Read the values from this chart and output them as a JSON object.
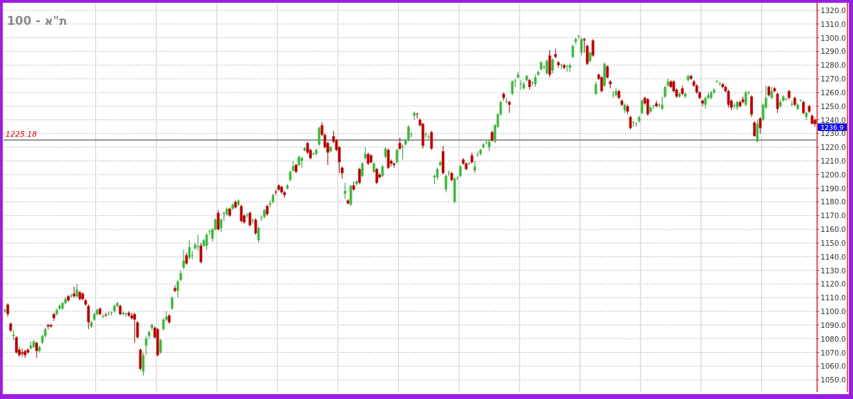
{
  "chart_data": {
    "type": "candlestick",
    "title": "ת\"א - 100",
    "categories": [
      null,
      null,
      null,
      null,
      null,
      null,
      null,
      null,
      null,
      null,
      null,
      null,
      null,
      null,
      null,
      null,
      null,
      null,
      null,
      null,
      null,
      null,
      null,
      null,
      null,
      null,
      null,
      null,
      null,
      null,
      null,
      null,
      null,
      null,
      null,
      null,
      null,
      null,
      null,
      null,
      null,
      null,
      null,
      null,
      null,
      null,
      null,
      null,
      null,
      null,
      null,
      null,
      null,
      null,
      null,
      null,
      null,
      null,
      null,
      null,
      null,
      null,
      null,
      null,
      null,
      null,
      null,
      null,
      null,
      null,
      null,
      null,
      null,
      null,
      null,
      null,
      null,
      null,
      null,
      null,
      null,
      null,
      null,
      null,
      null,
      null,
      null,
      null,
      null,
      null,
      null,
      null,
      null,
      null,
      null,
      null,
      null,
      null,
      null,
      null,
      null,
      null,
      null,
      null,
      null,
      null,
      null,
      null,
      null,
      null,
      null,
      null,
      null,
      null,
      null,
      null,
      null,
      null,
      null,
      null,
      null,
      null,
      null,
      null,
      null,
      null,
      null,
      null,
      null,
      null,
      null,
      null,
      null,
      null,
      null,
      null,
      null,
      null,
      null,
      null,
      null,
      null,
      null,
      null,
      null,
      null,
      null,
      null,
      null,
      null,
      null,
      null,
      null,
      null,
      null,
      null,
      null,
      null,
      null,
      null,
      null,
      null,
      null,
      null,
      null,
      null,
      null,
      null,
      null,
      null,
      null,
      null,
      null,
      null,
      null,
      null,
      null,
      null,
      null,
      null,
      null,
      null,
      null,
      null,
      null,
      null,
      null,
      null,
      null,
      null,
      null,
      null,
      null,
      null,
      null,
      null,
      null,
      null,
      null,
      null,
      null,
      null,
      null,
      null,
      null,
      null,
      null,
      null,
      null,
      null,
      null,
      null,
      null,
      null,
      null,
      null,
      null,
      null,
      null,
      null,
      null,
      null,
      null,
      null,
      null,
      null,
      null,
      null,
      null,
      null,
      null,
      null,
      null,
      null,
      null,
      null,
      null,
      null,
      null,
      null,
      null,
      null,
      null,
      null,
      null,
      null,
      null,
      null,
      null,
      null,
      null,
      null,
      null,
      null,
      null,
      null,
      null,
      null,
      null,
      null,
      null,
      null,
      null,
      null,
      null,
      null,
      null,
      null,
      null,
      null,
      null,
      null,
      null,
      null,
      null,
      null,
      null,
      null,
      null,
      null,
      null,
      null
    ],
    "ohlc": [
      [
        1100,
        1102,
        1099,
        1101
      ],
      [
        1105,
        1106,
        1096,
        1098
      ],
      [
        1091,
        1092,
        1085,
        1086
      ],
      [
        1082,
        1086,
        1079,
        1083
      ],
      [
        1081,
        1082,
        1069,
        1070
      ],
      [
        1072,
        1074,
        1067,
        1068
      ],
      [
        1070,
        1073,
        1067,
        1069
      ],
      [
        1071,
        1072,
        1066,
        1068
      ],
      [
        1072,
        1073,
        1069,
        1070
      ],
      [
        1073,
        1078,
        1072,
        1075
      ],
      [
        1074,
        1079,
        1073,
        1078
      ],
      [
        1077,
        1078,
        1066,
        1071
      ],
      [
        1071,
        1075,
        1070,
        1074
      ],
      [
        1077,
        1083,
        1076,
        1082
      ],
      [
        1082,
        1088,
        1081,
        1087
      ],
      [
        1090,
        1091,
        1087,
        1089
      ],
      [
        1090,
        1091,
        1088,
        1089
      ],
      [
        1098,
        1099,
        1093,
        1095
      ],
      [
        1098,
        1102,
        1097,
        1101
      ],
      [
        1102,
        1105,
        1101,
        1104
      ],
      [
        1102,
        1107,
        1101,
        1106
      ],
      [
        1106,
        1110,
        1105,
        1109
      ],
      [
        1111,
        1112,
        1107,
        1108
      ],
      [
        1111,
        1113,
        1110,
        1111.5
      ],
      [
        1113,
        1118,
        1110,
        1111
      ],
      [
        1111,
        1120,
        1110,
        1116
      ],
      [
        1114,
        1115,
        1108,
        1109
      ],
      [
        1113,
        1114,
        1108,
        1109
      ],
      [
        1108,
        1109,
        1104,
        1105
      ],
      [
        1104,
        1105,
        1087,
        1092
      ],
      [
        1089,
        1093,
        1088,
        1092
      ],
      [
        1094,
        1099,
        1093,
        1098
      ],
      [
        1098,
        1102,
        1097,
        1101
      ],
      [
        1102,
        1103,
        1097,
        1098
      ],
      [
        1096,
        1098,
        1095,
        1096.5
      ],
      [
        1097.5,
        1099,
        1096,
        1097
      ],
      [
        1098,
        1100,
        1097,
        1098.5
      ],
      [
        1099,
        1100,
        1097,
        1099.5
      ],
      [
        1100,
        1105,
        1099,
        1104
      ],
      [
        1104,
        1107,
        1103,
        1106
      ],
      [
        1104,
        1105,
        1097,
        1098
      ],
      [
        1098,
        1100,
        1097,
        1099
      ],
      [
        1098,
        1099,
        1096,
        1098.5
      ],
      [
        1099,
        1100,
        1096,
        1097
      ],
      [
        1097,
        1099,
        1094,
        1095
      ],
      [
        1098,
        1099,
        1077,
        1094
      ],
      [
        1092,
        1093,
        1080,
        1081
      ],
      [
        1072,
        1073,
        1057,
        1058
      ],
      [
        1056,
        1070,
        1053,
        1068
      ],
      [
        1075,
        1082,
        1068,
        1080
      ],
      [
        1082,
        1086,
        1080,
        1085
      ],
      [
        1088,
        1091,
        1086,
        1090
      ],
      [
        1088,
        1089,
        1080,
        1081
      ],
      [
        1087,
        1088,
        1067,
        1068
      ],
      [
        1070,
        1080,
        1069,
        1079
      ],
      [
        1087,
        1095,
        1086,
        1094
      ],
      [
        1094,
        1100,
        1093,
        1096
      ],
      [
        1097,
        1098,
        1091,
        1092
      ],
      [
        1102,
        1111,
        1101,
        1110
      ],
      [
        1117,
        1119,
        1114,
        1115
      ],
      [
        1115,
        1123,
        1110,
        1122
      ],
      [
        1123,
        1130,
        1122,
        1128
      ],
      [
        1132,
        1145,
        1131,
        1137
      ],
      [
        1141,
        1143,
        1134,
        1135
      ],
      [
        1139,
        1152,
        1138,
        1147
      ],
      [
        1141,
        1144,
        1138,
        1141.5
      ],
      [
        1146,
        1150,
        1145,
        1149
      ],
      [
        1147,
        1156,
        1144,
        1147.5
      ],
      [
        1148,
        1150,
        1135,
        1136
      ],
      [
        1148,
        1153,
        1147,
        1152
      ],
      [
        1148,
        1157,
        1145,
        1156
      ],
      [
        1158,
        1160,
        1156,
        1158.5
      ],
      [
        1153,
        1161,
        1151,
        1160
      ],
      [
        1160,
        1168,
        1159,
        1167
      ],
      [
        1172,
        1174,
        1159,
        1160
      ],
      [
        1161,
        1168,
        1158,
        1167
      ],
      [
        1171,
        1173,
        1166,
        1172
      ],
      [
        1171,
        1176,
        1170,
        1175
      ],
      [
        1175,
        1176,
        1169,
        1170
      ],
      [
        1175,
        1179,
        1174,
        1178
      ],
      [
        1180,
        1181,
        1175,
        1176
      ],
      [
        1178,
        1182,
        1177,
        1181
      ],
      [
        1177,
        1178,
        1165,
        1166
      ],
      [
        1170,
        1171,
        1164,
        1165
      ],
      [
        1170,
        1172,
        1168,
        1170.5
      ],
      [
        1172,
        1173,
        1162,
        1163
      ],
      [
        1166,
        1168,
        1164,
        1166.5
      ],
      [
        1167,
        1168,
        1156,
        1157
      ],
      [
        1152,
        1162,
        1150,
        1161
      ],
      [
        1168,
        1170,
        1166,
        1168.5
      ],
      [
        1169,
        1175,
        1168,
        1174
      ],
      [
        1177,
        1178,
        1170,
        1171
      ],
      [
        1178,
        1181,
        1176,
        1179
      ],
      [
        1180,
        1186,
        1179,
        1185
      ],
      [
        1187.5,
        1189,
        1185,
        1187
      ],
      [
        1192,
        1193,
        1188,
        1189
      ],
      [
        1191,
        1192,
        1186,
        1187
      ],
      [
        1187,
        1188,
        1183,
        1185
      ],
      [
        1190,
        1193,
        1189,
        1192
      ],
      [
        1196,
        1203,
        1195,
        1202
      ],
      [
        1203,
        1210,
        1202,
        1206
      ],
      [
        1207,
        1208,
        1201,
        1202
      ],
      [
        1207,
        1214,
        1206,
        1213
      ],
      [
        1210,
        1213,
        1205,
        1212
      ],
      [
        1217.5,
        1220,
        1217,
        1219.5
      ],
      [
        1223,
        1224,
        1215,
        1216
      ],
      [
        1218,
        1219,
        1211,
        1212
      ],
      [
        1215,
        1216,
        1214,
        1215.5
      ],
      [
        1215,
        1219,
        1214,
        1218
      ],
      [
        1222,
        1235,
        1221,
        1234
      ],
      [
        1236,
        1238,
        1228,
        1229
      ],
      [
        1229,
        1230,
        1219,
        1220
      ],
      [
        1223,
        1224,
        1207,
        1216
      ],
      [
        1217,
        1221,
        1216,
        1220
      ],
      [
        1228,
        1232,
        1223,
        1224
      ],
      [
        1225,
        1226,
        1217,
        1218
      ],
      [
        1220,
        1221,
        1201,
        1209
      ],
      [
        1205,
        1206,
        1197,
        1201
      ],
      [
        1186,
        1194,
        1182,
        1188
      ],
      [
        1181,
        1182,
        1178,
        1179
      ],
      [
        1178,
        1192,
        1177,
        1192
      ],
      [
        1192,
        1195,
        1188,
        1189
      ],
      [
        1193,
        1196,
        1192,
        1195
      ],
      [
        1204,
        1205,
        1193,
        1194
      ],
      [
        1199,
        1209,
        1198,
        1208
      ],
      [
        1212,
        1220,
        1211,
        1215
      ],
      [
        1215,
        1216,
        1207,
        1208
      ],
      [
        1214,
        1215,
        1208,
        1209
      ],
      [
        1202,
        1209,
        1201,
        1208
      ],
      [
        1204,
        1205,
        1193,
        1194
      ],
      [
        1200,
        1201,
        1197,
        1198
      ],
      [
        1199,
        1207,
        1198,
        1206
      ],
      [
        1213,
        1220,
        1212,
        1219
      ],
      [
        1218,
        1219,
        1204,
        1205
      ],
      [
        1210,
        1211,
        1206,
        1208
      ],
      [
        1208,
        1209,
        1205,
        1207
      ],
      [
        1209,
        1219,
        1208,
        1218
      ],
      [
        1223,
        1227,
        1218,
        1219
      ],
      [
        1220,
        1222,
        1211,
        1220.5
      ],
      [
        1222,
        1226,
        1221,
        1225
      ],
      [
        1225,
        1236,
        1224,
        1235
      ],
      [
        1229,
        1231,
        1227,
        1229.5
      ],
      [
        1243,
        1246,
        1240,
        1245
      ],
      [
        1244.5,
        1245,
        1241,
        1244
      ],
      [
        1240,
        1241,
        1235,
        1236
      ],
      [
        1237,
        1238,
        1219,
        1221
      ],
      [
        1229,
        1231,
        1227,
        1229.5
      ],
      [
        1227,
        1229,
        1226,
        1227.5
      ],
      [
        1231,
        1232,
        1218,
        1219
      ],
      [
        1198,
        1200,
        1193,
        1199
      ],
      [
        1198,
        1205,
        1196,
        1204
      ],
      [
        1207,
        1210,
        1206,
        1209
      ],
      [
        1217,
        1221,
        1200,
        1201
      ],
      [
        1189,
        1200,
        1187,
        1199
      ],
      [
        1201,
        1203,
        1199,
        1201.5
      ],
      [
        1201,
        1202,
        1195,
        1196
      ],
      [
        1180,
        1198,
        1179,
        1197
      ],
      [
        1197,
        1199,
        1196,
        1197.5
      ],
      [
        1199,
        1207,
        1198,
        1206
      ],
      [
        1211,
        1212,
        1207,
        1208
      ],
      [
        1208,
        1209,
        1203,
        1204
      ],
      [
        1208,
        1209,
        1207,
        1208.5
      ],
      [
        1214,
        1216,
        1208,
        1209
      ],
      [
        1203,
        1210,
        1201,
        1206
      ],
      [
        1214,
        1217,
        1213,
        1214.5
      ],
      [
        1215,
        1219,
        1214,
        1218
      ],
      [
        1220,
        1223,
        1219,
        1222
      ],
      [
        1223,
        1225,
        1222,
        1223.5
      ],
      [
        1220,
        1226,
        1217,
        1224
      ],
      [
        1231,
        1232,
        1224,
        1225
      ],
      [
        1224,
        1237,
        1223,
        1236
      ],
      [
        1235,
        1245,
        1234,
        1244
      ],
      [
        1244,
        1254,
        1243,
        1253
      ],
      [
        1259,
        1260,
        1254,
        1256
      ],
      [
        1253,
        1256,
        1252,
        1253.5
      ],
      [
        1253,
        1254,
        1245,
        1251
      ],
      [
        1259,
        1269,
        1258,
        1268
      ],
      [
        1268,
        1270,
        1264,
        1268.5
      ],
      [
        1271,
        1275,
        1270,
        1273
      ],
      [
        1266,
        1269,
        1262,
        1266.5
      ],
      [
        1263,
        1268,
        1262,
        1266
      ],
      [
        1269,
        1273,
        1268,
        1272
      ],
      [
        1269,
        1270,
        1262,
        1264
      ],
      [
        1267,
        1268,
        1265,
        1267.5
      ],
      [
        1266,
        1273,
        1264,
        1271
      ],
      [
        1273,
        1276,
        1272,
        1275
      ],
      [
        1277,
        1283,
        1276,
        1282
      ],
      [
        1278,
        1280,
        1277,
        1278.5
      ],
      [
        1274,
        1284,
        1273,
        1283
      ],
      [
        1287,
        1291,
        1271,
        1273
      ],
      [
        1276,
        1285,
        1274,
        1284
      ],
      [
        1288,
        1292,
        1285,
        1286
      ],
      [
        1282,
        1283,
        1278,
        1280
      ],
      [
        1280,
        1281,
        1277,
        1280.5
      ],
      [
        1280,
        1281,
        1277,
        1278
      ],
      [
        1279,
        1280,
        1275,
        1279.5
      ],
      [
        1278,
        1281,
        1275,
        1280
      ],
      [
        1286,
        1295,
        1285,
        1294
      ],
      [
        1297,
        1300,
        1295,
        1299
      ],
      [
        1301,
        1302,
        1299,
        1301.5
      ],
      [
        1289,
        1300,
        1287,
        1299
      ],
      [
        1299,
        1300,
        1289,
        1298
      ],
      [
        1294,
        1295,
        1280,
        1281
      ],
      [
        1283,
        1290,
        1282,
        1289
      ],
      [
        1298,
        1299,
        1286,
        1287
      ],
      [
        1259,
        1268,
        1258,
        1266
      ],
      [
        1273,
        1274,
        1269,
        1270
      ],
      [
        1271,
        1272,
        1260,
        1261
      ],
      [
        1265,
        1282,
        1264,
        1281
      ],
      [
        1279,
        1280,
        1270,
        1271
      ],
      [
        1268,
        1269,
        1263,
        1266
      ],
      [
        1258,
        1261,
        1256,
        1258.5
      ],
      [
        1258,
        1263,
        1257,
        1261
      ],
      [
        1261,
        1262,
        1255,
        1256
      ],
      [
        1254,
        1255,
        1250,
        1251
      ],
      [
        1247,
        1252,
        1245,
        1251
      ],
      [
        1250,
        1251,
        1244,
        1246
      ],
      [
        1242,
        1243,
        1233,
        1234
      ],
      [
        1238,
        1239,
        1235,
        1238.5
      ],
      [
        1237,
        1238,
        1235,
        1237.5
      ],
      [
        1239,
        1243,
        1238,
        1242
      ],
      [
        1245,
        1255,
        1244,
        1254
      ],
      [
        1256,
        1257,
        1251,
        1252
      ],
      [
        1255,
        1256,
        1243,
        1244
      ],
      [
        1246,
        1250,
        1245,
        1249
      ],
      [
        1250,
        1251,
        1248,
        1250.5
      ],
      [
        1252,
        1254,
        1249,
        1250
      ],
      [
        1251,
        1252,
        1249,
        1251.5
      ],
      [
        1248,
        1257,
        1247,
        1251
      ],
      [
        1257,
        1265,
        1256,
        1264
      ],
      [
        1265,
        1270,
        1264,
        1268
      ],
      [
        1268,
        1269,
        1263,
        1264
      ],
      [
        1268,
        1269,
        1260,
        1261
      ],
      [
        1262,
        1263,
        1256,
        1257
      ],
      [
        1257,
        1260,
        1256,
        1259
      ],
      [
        1263,
        1265,
        1258,
        1259
      ],
      [
        1257,
        1260,
        1256,
        1259
      ],
      [
        1269,
        1273,
        1268,
        1272
      ],
      [
        1272,
        1273,
        1269,
        1270
      ],
      [
        1268,
        1269,
        1264,
        1265
      ],
      [
        1265,
        1266,
        1259,
        1260
      ],
      [
        1260,
        1261,
        1255,
        1256
      ],
      [
        1254,
        1255,
        1250,
        1252
      ],
      [
        1251,
        1257,
        1248,
        1256
      ],
      [
        1256,
        1260,
        1255,
        1258
      ],
      [
        1256,
        1261,
        1255,
        1260
      ],
      [
        1260,
        1263,
        1259,
        1262
      ],
      [
        1268,
        1269,
        1267,
        1268.5
      ],
      [
        1266,
        1268,
        1265,
        1266.5
      ],
      [
        1266,
        1267,
        1263,
        1264
      ],
      [
        1264,
        1265,
        1260,
        1261
      ],
      [
        1261,
        1262,
        1249,
        1251
      ],
      [
        1254,
        1255,
        1247,
        1249
      ],
      [
        1250,
        1252,
        1248,
        1250.5
      ],
      [
        1249,
        1254,
        1247,
        1253
      ],
      [
        1253,
        1254,
        1249,
        1250
      ],
      [
        1255,
        1257,
        1252,
        1253
      ],
      [
        1251,
        1261,
        1250,
        1260
      ],
      [
        1260,
        1261,
        1258,
        1260.5
      ],
      [
        1257,
        1258,
        1242,
        1244
      ],
      [
        1238,
        1239,
        1228,
        1228
      ],
      [
        1224,
        1240,
        1224,
        1237
      ],
      [
        1241,
        1242,
        1230,
        1234
      ],
      [
        1240,
        1252,
        1239,
        1251
      ],
      [
        1249,
        1265,
        1248,
        1256
      ],
      [
        1264,
        1265,
        1257,
        1258
      ],
      [
        1256,
        1264,
        1255,
        1261
      ],
      [
        1263,
        1264,
        1260,
        1261
      ],
      [
        1259,
        1260,
        1245,
        1248
      ],
      [
        1250,
        1255,
        1249,
        1253
      ],
      [
        1254,
        1258,
        1253,
        1257
      ],
      [
        1255,
        1256,
        1254,
        1255.5
      ],
      [
        1261,
        1262,
        1255,
        1256
      ],
      [
        1251,
        1254,
        1250,
        1251.5
      ],
      [
        1256,
        1257,
        1250,
        1251
      ],
      [
        1248,
        1252,
        1247,
        1251
      ],
      [
        1254,
        1255,
        1253,
        1254.5
      ],
      [
        1253,
        1254,
        1244,
        1245
      ],
      [
        1242,
        1246,
        1240,
        1245
      ],
      [
        1250,
        1251,
        1245,
        1246
      ],
      [
        1243,
        1244,
        1237,
        1237
      ],
      [
        1240,
        1241,
        1235,
        1236.9
      ]
    ],
    "ylim": [
      1041,
      1320.5
    ],
    "yticks": [
      {
        "value": 1050,
        "label": "1050.0"
      },
      {
        "value": 1060,
        "label": "1060.0"
      },
      {
        "value": 1070,
        "label": "1070.0"
      },
      {
        "value": 1080,
        "label": "1080.0"
      },
      {
        "value": 1090,
        "label": "1090.0"
      },
      {
        "value": 1100,
        "label": "1100.0"
      },
      {
        "value": 1110,
        "label": "1110.0"
      },
      {
        "value": 1120,
        "label": "1120.0"
      },
      {
        "value": 1130,
        "label": "1130.0"
      },
      {
        "value": 1140,
        "label": "1140.0"
      },
      {
        "value": 1150,
        "label": "1150.0"
      },
      {
        "value": 1160,
        "label": "1160.0"
      },
      {
        "value": 1170,
        "label": "1170.0"
      },
      {
        "value": 1180,
        "label": "1180.0"
      },
      {
        "value": 1190,
        "label": "1190.0"
      },
      {
        "value": 1200,
        "label": "1200.0"
      },
      {
        "value": 1210,
        "label": "1210.0"
      },
      {
        "value": 1220,
        "label": "1220.0"
      },
      {
        "value": 1230,
        "label": "1230.0"
      },
      {
        "value": 1240,
        "label": "1240.0"
      },
      {
        "value": 1250,
        "label": "1250.0"
      },
      {
        "value": 1260,
        "label": "1260.0"
      },
      {
        "value": 1270,
        "label": "1270.0"
      },
      {
        "value": 1280,
        "label": "1280.0"
      },
      {
        "value": 1290,
        "label": "1290.0"
      },
      {
        "value": 1300,
        "label": "1300.0"
      },
      {
        "value": 1310,
        "label": "1310.0"
      },
      {
        "value": 1320,
        "label": "1320.0"
      }
    ],
    "grid": true,
    "ref_lines": [
      {
        "axis": "y",
        "value": 1225.18,
        "label": "1225.18",
        "color": "#555555"
      }
    ],
    "annotations": [
      "1236.9"
    ]
  }
}
